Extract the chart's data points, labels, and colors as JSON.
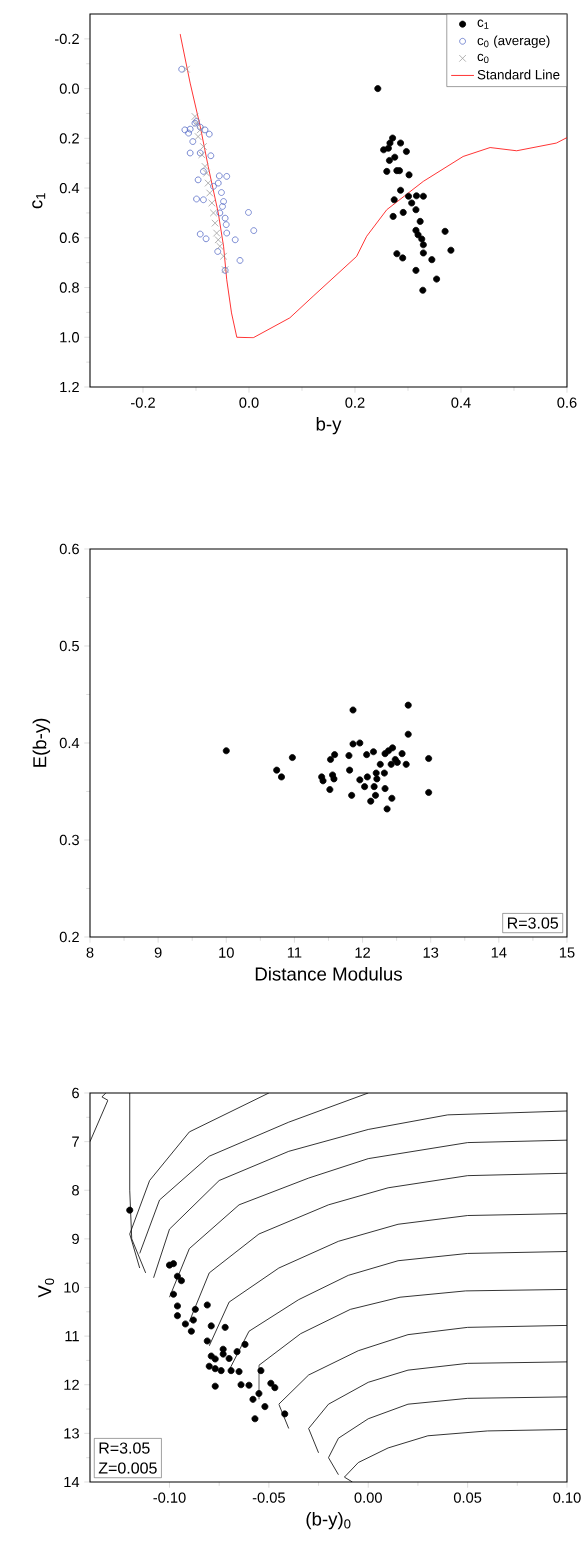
{
  "chart_data": [
    {
      "type": "scatter",
      "xlabel": "b-y",
      "ylabel": "c$_{1}$",
      "xlim": [
        -0.3,
        0.6
      ],
      "ylim": [
        1.2,
        -0.3
      ],
      "xticks": [
        -0.2,
        {
          "value": 0,
          "label": "0.0"
        },
        0.2,
        0.4,
        0.6
      ],
      "yticks": [
        -0.2,
        {
          "value": 0,
          "label": "0.0"
        },
        0.2,
        0.4,
        0.6,
        0.8,
        {
          "value": 1,
          "label": "1.0"
        },
        1.2
      ],
      "legend": "top right",
      "series": [
        {
          "name": "c$_{1}$",
          "color": "#000000",
          "marker": "circle",
          "x": [
            0.243,
            0.271,
            0.266,
            0.286,
            0.254,
            0.263,
            0.297,
            0.275,
            0.265,
            0.26,
            0.279,
            0.284,
            0.302,
            0.286,
            0.274,
            0.301,
            0.316,
            0.329,
            0.307,
            0.315,
            0.291,
            0.272,
            0.323,
            0.315,
            0.319,
            0.37,
            0.326,
            0.329,
            0.381,
            0.329,
            0.279,
            0.29,
            0.345,
            0.315,
            0.354,
            0.328
          ],
          "values": [
            0.0,
            0.199,
            0.219,
            0.219,
            0.246,
            0.24,
            0.253,
            0.276,
            0.289,
            0.333,
            0.33,
            0.33,
            0.347,
            0.409,
            0.447,
            0.433,
            0.431,
            0.433,
            0.46,
            0.487,
            0.498,
            0.514,
            0.534,
            0.57,
            0.588,
            0.574,
            0.605,
            0.628,
            0.65,
            0.661,
            0.664,
            0.681,
            0.688,
            0.731,
            0.766,
            0.811
          ]
        },
        {
          "name": "c$_{0}$ (average)",
          "color": "#5a6ec8",
          "marker": "circle",
          "x": [
            -0.127,
            -0.121,
            -0.111,
            -0.114,
            -0.102,
            -0.092,
            -0.083,
            -0.075,
            -0.099,
            -0.106,
            -0.111,
            -0.092,
            -0.072,
            -0.086,
            -0.096,
            -0.056,
            -0.042,
            -0.058,
            -0.067,
            -0.052,
            -0.099,
            -0.086,
            -0.048,
            -0.05,
            -0.055,
            -0.045,
            -0.043,
            -0.042,
            -0.001,
            0.009,
            -0.092,
            -0.081,
            -0.026,
            -0.059,
            -0.017,
            -0.045
          ],
          "values": [
            -0.078,
            0.166,
            0.163,
            0.179,
            0.139,
            0.155,
            0.166,
            0.183,
            0.132,
            0.213,
            0.259,
            0.259,
            0.27,
            0.333,
            0.367,
            0.351,
            0.353,
            0.38,
            0.393,
            0.418,
            0.444,
            0.447,
            0.454,
            0.474,
            0.5,
            0.521,
            0.547,
            0.581,
            0.498,
            0.571,
            0.585,
            0.604,
            0.608,
            0.655,
            0.691,
            0.731
          ]
        },
        {
          "name": "c$_{0}$",
          "color": "#a0a0a0",
          "marker": "cross",
          "x": [
            -0.118,
            -0.102,
            -0.099,
            -0.092,
            -0.096,
            -0.086,
            -0.089,
            -0.083,
            -0.08,
            -0.077,
            -0.074,
            -0.07,
            -0.067,
            -0.064,
            -0.061,
            -0.058,
            -0.055,
            -0.048,
            -0.045
          ],
          "values": [
            -0.078,
            0.112,
            0.139,
            0.166,
            0.193,
            0.233,
            0.266,
            0.313,
            0.34,
            0.38,
            0.42,
            0.46,
            0.5,
            0.541,
            0.581,
            0.608,
            0.634,
            0.674,
            0.728
          ]
        },
        {
          "name": "Standard Line",
          "type": "line",
          "color": "#ff0000",
          "x": [
            -0.13,
            -0.111,
            -0.092,
            -0.077,
            -0.058,
            -0.048,
            -0.042,
            -0.033,
            -0.023,
            0.008,
            0.077,
            0.121,
            0.203,
            0.222,
            0.26,
            0.329,
            0.404,
            0.455,
            0.505,
            0.58,
            0.6
          ],
          "values": [
            -0.22,
            -0.022,
            0.152,
            0.313,
            0.5,
            0.634,
            0.768,
            0.902,
            1.0,
            1.002,
            0.922,
            0.835,
            0.675,
            0.594,
            0.487,
            0.373,
            0.273,
            0.237,
            0.25,
            0.219,
            0.197
          ]
        }
      ]
    },
    {
      "type": "scatter",
      "xlabel": "Distance Modulus",
      "ylabel": "E(b-y)",
      "xlim": [
        8,
        15
      ],
      "ylim": [
        0.2,
        0.6
      ],
      "xticks": [
        8,
        9,
        10,
        11,
        12,
        13,
        14,
        15
      ],
      "yticks": [
        0.2,
        0.3,
        0.4,
        0.5,
        0.6
      ],
      "annotations": [
        "R=3.05"
      ],
      "series": [
        {
          "color": "#000000",
          "marker": "circle",
          "x": [
            10.0,
            10.74,
            10.81,
            10.97,
            11.4,
            11.42,
            11.52,
            11.53,
            11.59,
            11.56,
            11.58,
            11.8,
            11.81,
            11.84,
            11.86,
            11.86,
            11.96,
            11.96,
            12.03,
            12.06,
            12.07,
            12.16,
            12.17,
            12.19,
            12.12,
            12.2,
            12.21,
            12.26,
            12.32,
            12.33,
            12.33,
            12.38,
            12.44,
            12.36,
            12.43,
            12.42,
            12.48,
            12.51,
            12.58,
            12.64,
            12.67,
            12.67,
            12.97,
            12.97
          ],
          "values": [
            0.392,
            0.372,
            0.365,
            0.385,
            0.365,
            0.361,
            0.352,
            0.383,
            0.388,
            0.367,
            0.363,
            0.387,
            0.372,
            0.346,
            0.434,
            0.399,
            0.4,
            0.362,
            0.355,
            0.388,
            0.365,
            0.391,
            0.355,
            0.346,
            0.34,
            0.369,
            0.363,
            0.378,
            0.369,
            0.353,
            0.389,
            0.392,
            0.395,
            0.332,
            0.343,
            0.378,
            0.383,
            0.38,
            0.389,
            0.378,
            0.439,
            0.409,
            0.384,
            0.349
          ]
        }
      ]
    },
    {
      "type": "scatter",
      "xlabel": "(b-y)$_{0}$",
      "ylabel": "V$_{0}$",
      "xlim": [
        -0.14,
        0.1
      ],
      "ylim": [
        14,
        6
      ],
      "xticks": [
        {
          "value": -0.1,
          "label": "-0.10"
        },
        {
          "value": -0.05,
          "label": "-0.05"
        },
        {
          "value": 0,
          "label": "0.00"
        },
        {
          "value": 0.05,
          "label": "0.05"
        },
        {
          "value": 0.1,
          "label": "0.10"
        }
      ],
      "yticks": [
        6,
        7,
        8,
        9,
        10,
        11,
        12,
        13,
        14
      ],
      "annotations": [
        "R=3.05",
        "Z=0.005"
      ],
      "series": [
        {
          "type": "line",
          "color": "#000000",
          "x": [
            0.1,
            0.06,
            0.03,
            0.01,
            -0.005,
            -0.012,
            -0.008
          ],
          "values": [
            12.92,
            12.95,
            13.05,
            13.3,
            13.6,
            13.9,
            14.0
          ]
        },
        {
          "type": "line",
          "color": "#000000",
          "x": [
            0.1,
            0.05,
            0.02,
            0.0,
            -0.015,
            -0.02,
            -0.015
          ],
          "values": [
            12.25,
            12.28,
            12.4,
            12.7,
            13.1,
            13.5,
            13.85
          ]
        },
        {
          "type": "line",
          "color": "#000000",
          "x": [
            0.1,
            0.05,
            0.02,
            0.0,
            -0.02,
            -0.03,
            -0.025
          ],
          "values": [
            11.53,
            11.56,
            11.7,
            11.95,
            12.4,
            12.9,
            13.4
          ]
        },
        {
          "type": "line",
          "color": "#000000",
          "x": [
            0.1,
            0.05,
            0.02,
            -0.005,
            -0.03,
            -0.045,
            -0.04
          ],
          "values": [
            10.78,
            10.82,
            10.97,
            11.3,
            11.8,
            12.4,
            12.9
          ]
        },
        {
          "type": "line",
          "color": "#000000",
          "x": [
            0.1,
            0.049,
            0.016,
            -0.009,
            -0.034,
            -0.055,
            -0.055
          ],
          "values": [
            10.04,
            10.07,
            10.2,
            10.45,
            10.95,
            11.6,
            12.3
          ]
        },
        {
          "type": "line",
          "color": "#000000",
          "x": [
            0.1,
            0.05,
            0.015,
            -0.01,
            -0.035,
            -0.06,
            -0.07
          ],
          "values": [
            9.26,
            9.3,
            9.45,
            9.75,
            10.25,
            10.9,
            11.7
          ]
        },
        {
          "type": "line",
          "color": "#000000",
          "x": [
            0.1,
            0.05,
            0.015,
            -0.015,
            -0.045,
            -0.07,
            -0.08
          ],
          "values": [
            8.48,
            8.52,
            8.7,
            9.05,
            9.6,
            10.3,
            11.2
          ]
        },
        {
          "type": "line",
          "color": "#000000",
          "x": [
            0.1,
            0.05,
            0.01,
            -0.02,
            -0.055,
            -0.08,
            -0.09
          ],
          "values": [
            7.65,
            7.7,
            7.95,
            8.3,
            8.9,
            9.7,
            10.7
          ]
        },
        {
          "type": "line",
          "color": "#000000",
          "x": [
            0.1,
            0.05,
            0.0,
            -0.03,
            -0.065,
            -0.09,
            -0.1
          ],
          "values": [
            6.97,
            7.02,
            7.35,
            7.75,
            8.3,
            9.2,
            10.2
          ]
        },
        {
          "type": "line",
          "color": "#000000",
          "x": [
            0.1,
            0.04,
            0.0,
            -0.04,
            -0.075,
            -0.1,
            -0.108
          ],
          "values": [
            6.37,
            6.45,
            6.75,
            7.2,
            7.8,
            8.8,
            9.8
          ]
        },
        {
          "type": "line",
          "color": "#000000",
          "x": [
            0.0,
            -0.04,
            -0.08,
            -0.105,
            -0.115
          ],
          "values": [
            6.0,
            6.6,
            7.3,
            8.2,
            9.3
          ]
        },
        {
          "type": "line",
          "color": "#000000",
          "x": [
            -0.05,
            -0.09,
            -0.11,
            -0.12,
            -0.115
          ],
          "values": [
            6.0,
            6.8,
            7.8,
            8.9,
            9.6
          ]
        },
        {
          "type": "line",
          "color": "#000000",
          "x": [
            -0.12,
            -0.12,
            -0.119,
            -0.112
          ],
          "values": [
            6.0,
            8.0,
            9.0,
            9.7
          ]
        },
        {
          "type": "line",
          "color": "#000000",
          "x": [
            -0.14,
            -0.131,
            -0.134,
            -0.132
          ],
          "values": [
            7.0,
            6.15,
            6.08,
            6.0
          ]
        },
        {
          "color": "#000000",
          "marker": "circle",
          "x": [
            -0.12,
            -0.1,
            -0.098,
            -0.096,
            -0.094,
            -0.098,
            -0.096,
            -0.096,
            -0.087,
            -0.081,
            -0.092,
            -0.088,
            -0.089,
            -0.079,
            -0.072,
            -0.081,
            -0.062,
            -0.066,
            -0.073,
            -0.073,
            -0.079,
            -0.077,
            -0.07,
            -0.08,
            -0.077,
            -0.074,
            -0.069,
            -0.065,
            -0.054,
            -0.077,
            -0.064,
            -0.06,
            -0.049,
            -0.047,
            -0.055,
            -0.058,
            -0.052,
            -0.057,
            -0.042
          ],
          "values": [
            8.41,
            9.54,
            9.51,
            9.77,
            9.86,
            10.14,
            10.38,
            10.58,
            10.45,
            10.36,
            10.75,
            10.67,
            10.9,
            10.79,
            10.82,
            11.1,
            11.17,
            11.32,
            11.27,
            11.37,
            11.41,
            11.47,
            11.46,
            11.62,
            11.67,
            11.71,
            11.71,
            11.73,
            11.71,
            12.03,
            12.0,
            12.01,
            11.97,
            12.06,
            12.18,
            12.3,
            12.45,
            12.7,
            12.6
          ]
        }
      ]
    }
  ]
}
